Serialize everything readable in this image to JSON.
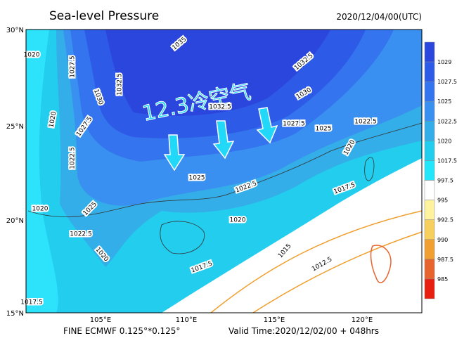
{
  "header": {
    "title": "Sea-level Pressure",
    "time": "2020/12/04/00(UTC)"
  },
  "footer": {
    "model": "FINE ECMWF 0.125°*0.125°",
    "valid": "Valid Time:2020/12/02/00 + 048hrs"
  },
  "axes": {
    "lat_labels": [
      "30°N",
      "25°N",
      "20°N",
      "15°N"
    ],
    "lon_labels": [
      "105°E",
      "110°E",
      "115°E",
      "120°E"
    ]
  },
  "colorbar": {
    "labels": [
      "1029",
      "1027.5",
      "1025",
      "1022.5",
      "1020",
      "1017.5",
      "997.5",
      "995",
      "992.5",
      "990",
      "987.5",
      "985"
    ],
    "colors": [
      "#2b46dc",
      "#2d5ae6",
      "#3474ee",
      "#3a90f0",
      "#34aee8",
      "#22cdee",
      "#22e6fa",
      "#ffffff",
      "#fff3a0",
      "#f7cf5e",
      "#f0a030",
      "#e8642e",
      "#e81e10"
    ]
  },
  "annotation": "12.3冷空气",
  "contour_labels": [
    "1035",
    "1032.5",
    "1027.5",
    "1032.5",
    "1030",
    "1020",
    "1020",
    "1022.5",
    "1027.5",
    "1032.5",
    "1030",
    "1027.5",
    "1025",
    "1022.5",
    "1020",
    "1017.5",
    "1025",
    "1022.5",
    "1020",
    "1020",
    "1025",
    "1022.5",
    "1020",
    "1017.5",
    "1015",
    "1012.5",
    "1017.5"
  ]
}
